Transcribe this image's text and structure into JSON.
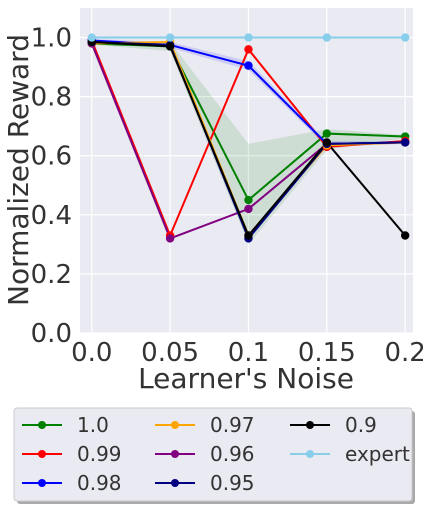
{
  "chart_data": {
    "type": "line",
    "xlabel": "Learner's Noise",
    "ylabel": "Normalized Reward",
    "x": [
      0.0,
      0.05,
      0.1,
      0.15,
      0.2
    ],
    "x_tick_labels": [
      "0.0",
      "0.05",
      "0.1",
      "0.15",
      "0.2"
    ],
    "y_ticks": [
      0.0,
      0.2,
      0.4,
      0.6,
      0.8,
      1.0
    ],
    "y_tick_labels": [
      "0.0",
      "0.2",
      "0.4",
      "0.6",
      "0.8",
      "1.0"
    ],
    "ylim": [
      0.0,
      1.1
    ],
    "xlim": [
      -0.0075,
      0.205
    ],
    "grid": true,
    "legend_position": "bottom (below plot), 3 columns",
    "series": [
      {
        "name": "1.0",
        "color": "#008000",
        "values": [
          0.98,
          0.97,
          0.45,
          0.675,
          0.665
        ],
        "band": [
          [
            0.975,
            0.985
          ],
          [
            0.955,
            0.985
          ],
          [
            0.3,
            0.64
          ],
          [
            0.62,
            0.69
          ],
          [
            0.66,
            0.67
          ]
        ]
      },
      {
        "name": "0.99",
        "color": "#ff0000",
        "values": [
          0.99,
          0.33,
          0.96,
          0.63,
          0.65
        ]
      },
      {
        "name": "0.98",
        "color": "#0000ff",
        "values": [
          0.99,
          0.975,
          0.905,
          0.64,
          0.645
        ],
        "band": [
          [
            0.985,
            0.995
          ],
          [
            0.965,
            0.985
          ],
          [
            0.89,
            0.92
          ],
          [
            0.63,
            0.65
          ],
          [
            0.64,
            0.65
          ]
        ]
      },
      {
        "name": "0.97",
        "color": "#ffa500",
        "values": [
          0.98,
          0.985,
          0.33,
          0.635,
          0.645
        ]
      },
      {
        "name": "0.96",
        "color": "#800080",
        "values": [
          0.98,
          0.32,
          0.42,
          0.64,
          0.645
        ]
      },
      {
        "name": "0.95",
        "color": "#000080",
        "values": [
          0.985,
          0.975,
          0.32,
          0.64,
          0.645
        ]
      },
      {
        "name": "0.9",
        "color": "#000000",
        "values": [
          0.985,
          0.97,
          0.33,
          0.645,
          0.33
        ]
      },
      {
        "name": "expert",
        "color": "#87ceeb",
        "values": [
          1.0,
          1.0,
          1.0,
          1.0,
          1.0
        ]
      }
    ]
  },
  "colors": {
    "plot_background": "#eaeaf2",
    "grid": "#ffffff",
    "band_fill": "#008000"
  }
}
